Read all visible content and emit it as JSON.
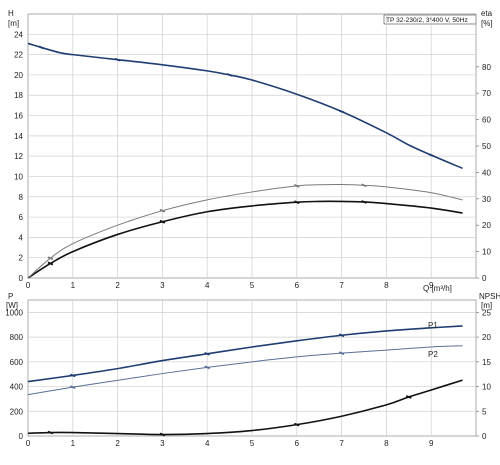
{
  "chart_data": {
    "type": "line",
    "title": "TP 32-230/2, 3*400 V, 50Hz",
    "colors": {
      "head": "#1f3d73",
      "efficiency": "#111111",
      "eta_thin": "#7a7a7a",
      "p1": "#1f3d73",
      "p2": "#5a6f96",
      "npsh": "#111111",
      "grid": "#cfcfcf"
    },
    "x_axis": {
      "label": "Q [m³/h]",
      "range": [
        0,
        10
      ],
      "ticks": [
        "0",
        "1",
        "2",
        "3",
        "4",
        "5",
        "6",
        "7",
        "8",
        "9"
      ]
    },
    "upper": {
      "left_axis": {
        "label_top": "H",
        "label_unit": "[m]",
        "range": [
          0,
          26
        ],
        "ticks": [
          "0",
          "2",
          "4",
          "6",
          "8",
          "10",
          "12",
          "14",
          "16",
          "18",
          "20",
          "22",
          "24"
        ]
      },
      "right_axis": {
        "label_top": "eta",
        "label_unit": "[%]",
        "range": [
          0,
          100
        ],
        "ticks": [
          "0",
          "10",
          "20",
          "30",
          "40",
          "50",
          "60",
          "70",
          "80"
        ]
      },
      "series": [
        {
          "axis": "left",
          "style": "head",
          "x": [
            0,
            0.3,
            0.7,
            1.0,
            2.0,
            3.0,
            4.0,
            4.5,
            5.0,
            6.0,
            7.0,
            8.0,
            8.5,
            9.0,
            9.7
          ],
          "y": [
            23.1,
            22.7,
            22.2,
            22.0,
            21.5,
            21.0,
            20.4,
            20.0,
            19.5,
            18.1,
            16.4,
            14.3,
            13.1,
            12.1,
            10.8
          ]
        },
        {
          "axis": "right",
          "style": "efficiency",
          "x": [
            0,
            0.5,
            1.0,
            2.0,
            3.0,
            4.0,
            5.0,
            6.0,
            6.5,
            7.0,
            7.5,
            8.0,
            9.0,
            9.7
          ],
          "y": [
            0,
            5.5,
            10,
            16.5,
            21.3,
            25.1,
            27.3,
            28.7,
            29.0,
            29.0,
            28.8,
            28.2,
            26.5,
            24.6
          ]
        },
        {
          "axis": "right",
          "style": "eta_thin",
          "x": [
            0,
            0.5,
            1.0,
            2.0,
            3.0,
            4.0,
            5.0,
            6.0,
            6.5,
            7.0,
            7.5,
            8.0,
            9.0,
            9.7
          ],
          "y": [
            0,
            7.5,
            13,
            20,
            25.5,
            29.6,
            32.6,
            34.9,
            35.3,
            35.4,
            35.1,
            34.5,
            32.3,
            29.6
          ]
        }
      ]
    },
    "lower": {
      "left_axis": {
        "label_top": "P",
        "label_unit": "[W]",
        "range": [
          0,
          1100
        ],
        "ticks": [
          "0",
          "200",
          "400",
          "600",
          "800",
          "1000"
        ]
      },
      "right_axis": {
        "label_top": "NPSH",
        "label_unit": "[m]",
        "range": [
          0,
          27.5
        ],
        "ticks": [
          "0",
          "5",
          "10",
          "15",
          "20",
          "25"
        ]
      },
      "series": [
        {
          "axis": "left",
          "style": "p1",
          "name": "P1",
          "x": [
            0,
            1,
            2,
            3,
            4,
            5,
            6,
            7,
            8,
            9,
            9.7
          ],
          "y": [
            440,
            490,
            545,
            610,
            665,
            720,
            770,
            815,
            850,
            875,
            890
          ]
        },
        {
          "axis": "left",
          "style": "p2",
          "name": "P2",
          "x": [
            0,
            1,
            2,
            3,
            4,
            5,
            6,
            7,
            8,
            9,
            9.7
          ],
          "y": [
            335,
            395,
            450,
            505,
            555,
            600,
            640,
            670,
            695,
            720,
            730
          ]
        },
        {
          "axis": "right",
          "style": "npsh",
          "x": [
            0,
            0.5,
            1,
            2,
            3,
            4,
            5,
            6,
            7,
            8,
            8.5,
            9,
            9.7
          ],
          "y": [
            0.55,
            0.7,
            0.7,
            0.5,
            0.3,
            0.5,
            1.1,
            2.3,
            4.0,
            6.3,
            7.9,
            9.3,
            11.3
          ]
        }
      ]
    }
  }
}
